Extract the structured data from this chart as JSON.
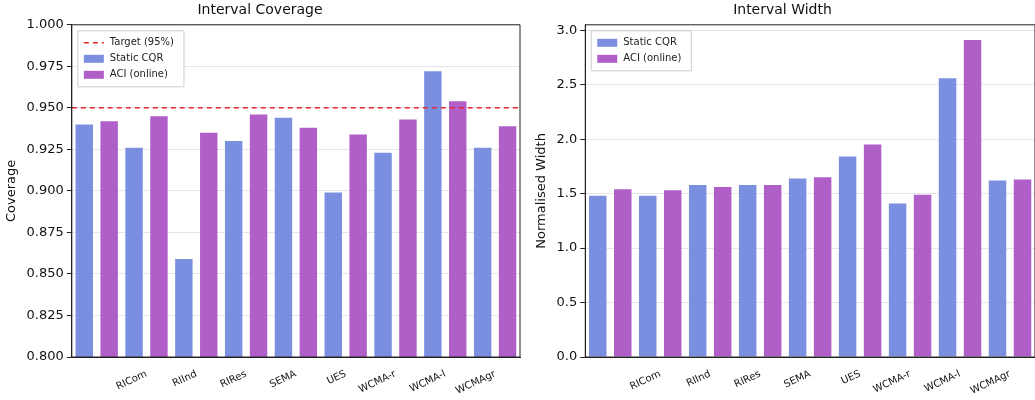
{
  "chart_data": [
    {
      "type": "bar",
      "title": "Interval Coverage",
      "ylabel": "Coverage",
      "categories": [
        null,
        "RICom",
        "RIInd",
        "RIRes",
        "SEMA",
        "UES",
        "WCMA-r",
        "WCMA-l",
        "WCMAgr"
      ],
      "series": [
        {
          "name": "Static CQR",
          "color": "#7b8fe0",
          "values": [
            0.94,
            0.926,
            0.859,
            0.93,
            0.944,
            0.899,
            0.923,
            0.972,
            0.926
          ]
        },
        {
          "name": "ACI (online)",
          "color": "#b05fc9",
          "values": [
            0.942,
            0.945,
            0.935,
            0.946,
            0.938,
            0.934,
            0.943,
            0.954,
            0.939
          ]
        }
      ],
      "ylim": [
        0.8,
        1.0
      ],
      "yticks": [
        {
          "value": 0.8,
          "label": "0.800"
        },
        {
          "value": 0.825,
          "label": "0.825"
        },
        {
          "value": 0.85,
          "label": "0.850"
        },
        {
          "value": 0.875,
          "label": "0.875"
        },
        {
          "value": 0.9,
          "label": "0.900"
        },
        {
          "value": 0.925,
          "label": "0.925"
        },
        {
          "value": 0.95,
          "label": "0.950"
        },
        {
          "value": 0.975,
          "label": "0.975"
        },
        {
          "value": 1.0,
          "label": "1.000"
        }
      ],
      "ref_lines": [
        {
          "axis": "y",
          "value": 0.95,
          "label": "Target (95%)",
          "color": "#e8262b",
          "line_style": "dashed"
        }
      ],
      "grid": "y",
      "legend": "top left"
    },
    {
      "type": "bar",
      "title": "Interval Width",
      "ylabel": "Normalised Width",
      "categories": [
        null,
        "RICom",
        "RIInd",
        "RIRes",
        "SEMA",
        "UES",
        "WCMA-r",
        "WCMA-l",
        "WCMAgr"
      ],
      "series": [
        {
          "name": "Static CQR",
          "color": "#7b8fe0",
          "values": [
            1.48,
            1.48,
            1.58,
            1.58,
            1.64,
            1.84,
            1.41,
            2.56,
            1.62
          ]
        },
        {
          "name": "ACI (online)",
          "color": "#b05fc9",
          "values": [
            1.54,
            1.53,
            1.56,
            1.58,
            1.65,
            1.95,
            1.49,
            2.91,
            1.63
          ]
        }
      ],
      "ylim": [
        0,
        3.05
      ],
      "yticks": [
        {
          "value": 0,
          "label": "0.0"
        },
        {
          "value": 0.5,
          "label": "0.5"
        },
        {
          "value": 1,
          "label": "1.0"
        },
        {
          "value": 1.5,
          "label": "1.5"
        },
        {
          "value": 2,
          "label": "2.0"
        },
        {
          "value": 2.5,
          "label": "2.5"
        },
        {
          "value": 3,
          "label": "3.0"
        }
      ],
      "grid": "y",
      "legend": "top left"
    }
  ]
}
